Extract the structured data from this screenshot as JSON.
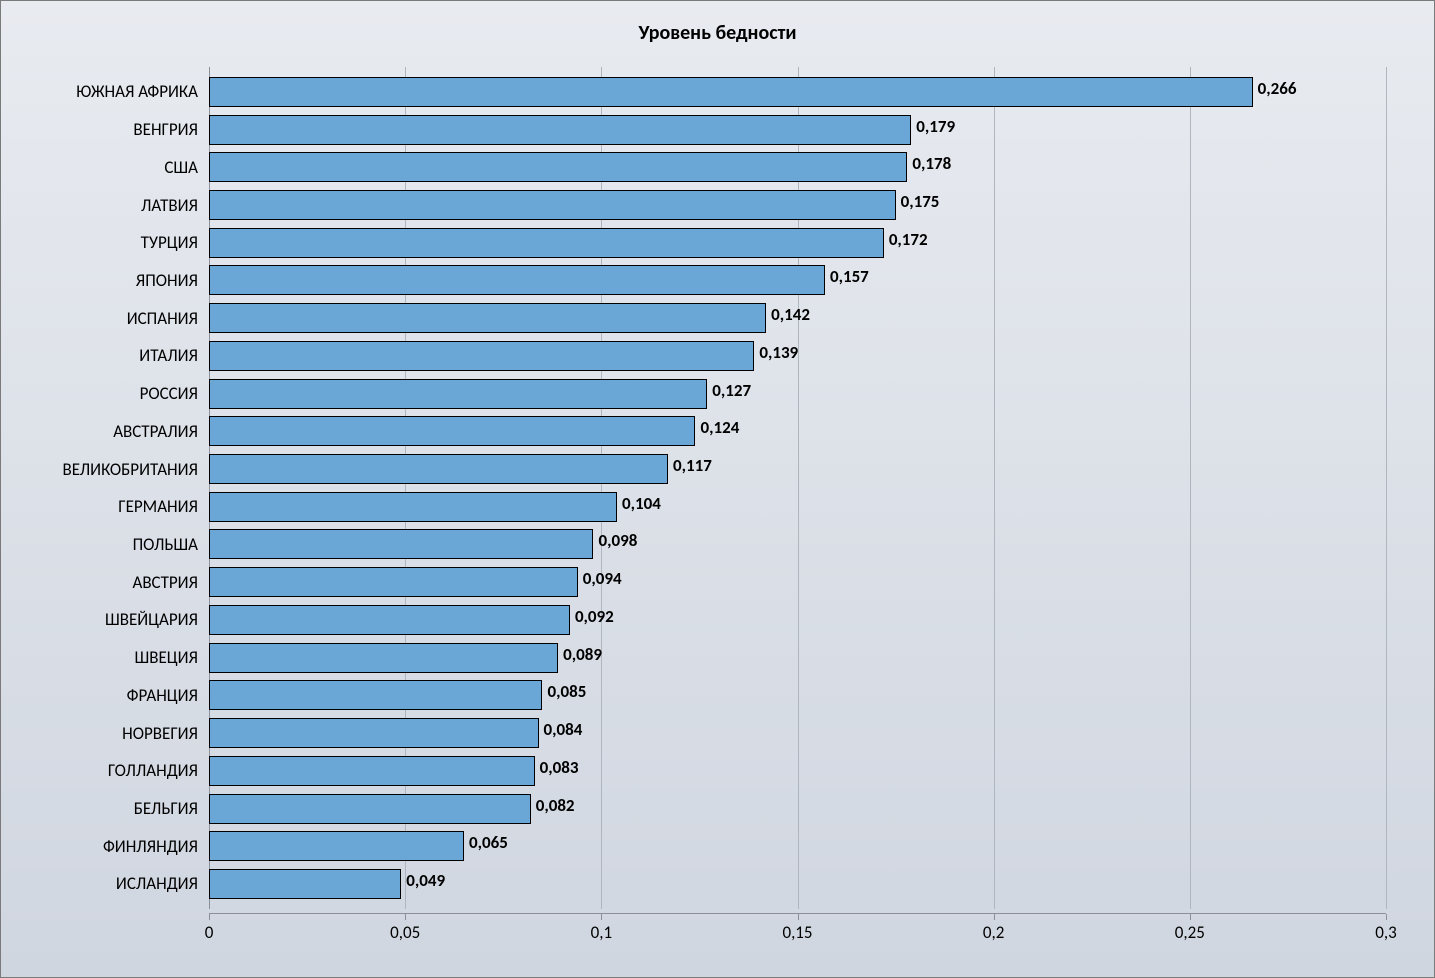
{
  "chart": {
    "type": "bar-horizontal",
    "title": "Уровень бедности",
    "title_fontsize": 20,
    "title_fontweight": "bold",
    "title_color": "#000000",
    "background_gradient_top": "#e8ebf0",
    "background_gradient_bottom": "#d0d6e0",
    "outer_border_color": "#7a7a7a",
    "bar_color": "#6ba7d6",
    "bar_border_color": "#000000",
    "bar_border_width": 1,
    "gridline_color": "#b0b6c0",
    "axis_line_color": "#8a8f99",
    "category_fontsize": 17,
    "category_color": "#000000",
    "value_label_fontsize": 17,
    "value_label_fontweight": "bold",
    "value_label_color": "#000000",
    "tick_label_fontsize": 17,
    "tick_label_color": "#000000",
    "decimal_separator": ",",
    "xlim": [
      0,
      0.3
    ],
    "xtick_step": 0.05,
    "xticks": [
      0,
      0.05,
      0.1,
      0.15,
      0.2,
      0.25,
      0.3
    ],
    "xtick_labels": [
      "0",
      "0,05",
      "0,1",
      "0,15",
      "0,2",
      "0,25",
      "0,3"
    ],
    "categories": [
      "ЮЖНАЯ АФРИКА",
      "ВЕНГРИЯ",
      "США",
      "ЛАТВИЯ",
      "ТУРЦИЯ",
      "ЯПОНИЯ",
      "ИСПАНИЯ",
      "ИТАЛИЯ",
      "РОССИЯ",
      "АВСТРАЛИЯ",
      "ВЕЛИКОБРИТАНИЯ",
      "ГЕРМАНИЯ",
      "ПОЛЬША",
      "АВСТРИЯ",
      "ШВЕЙЦАРИЯ",
      "ШВЕЦИЯ",
      "ФРАНЦИЯ",
      "НОРВЕГИЯ",
      "ГОЛЛАНДИЯ",
      "БЕЛЬГИЯ",
      "ФИНЛЯНДИЯ",
      "ИСЛАНДИЯ"
    ],
    "values": [
      0.266,
      0.179,
      0.178,
      0.175,
      0.172,
      0.157,
      0.142,
      0.139,
      0.127,
      0.124,
      0.117,
      0.104,
      0.098,
      0.094,
      0.092,
      0.089,
      0.085,
      0.084,
      0.083,
      0.082,
      0.065,
      0.049
    ],
    "value_labels": [
      "0,266",
      "0,179",
      "0,178",
      "0,175",
      "0,172",
      "0,157",
      "0,142",
      "0,139",
      "0,127",
      "0,124",
      "0,117",
      "0,104",
      "0,098",
      "0,094",
      "0,092",
      "0,089",
      "0,085",
      "0,084",
      "0,083",
      "0,082",
      "0,065",
      "0,049"
    ]
  }
}
